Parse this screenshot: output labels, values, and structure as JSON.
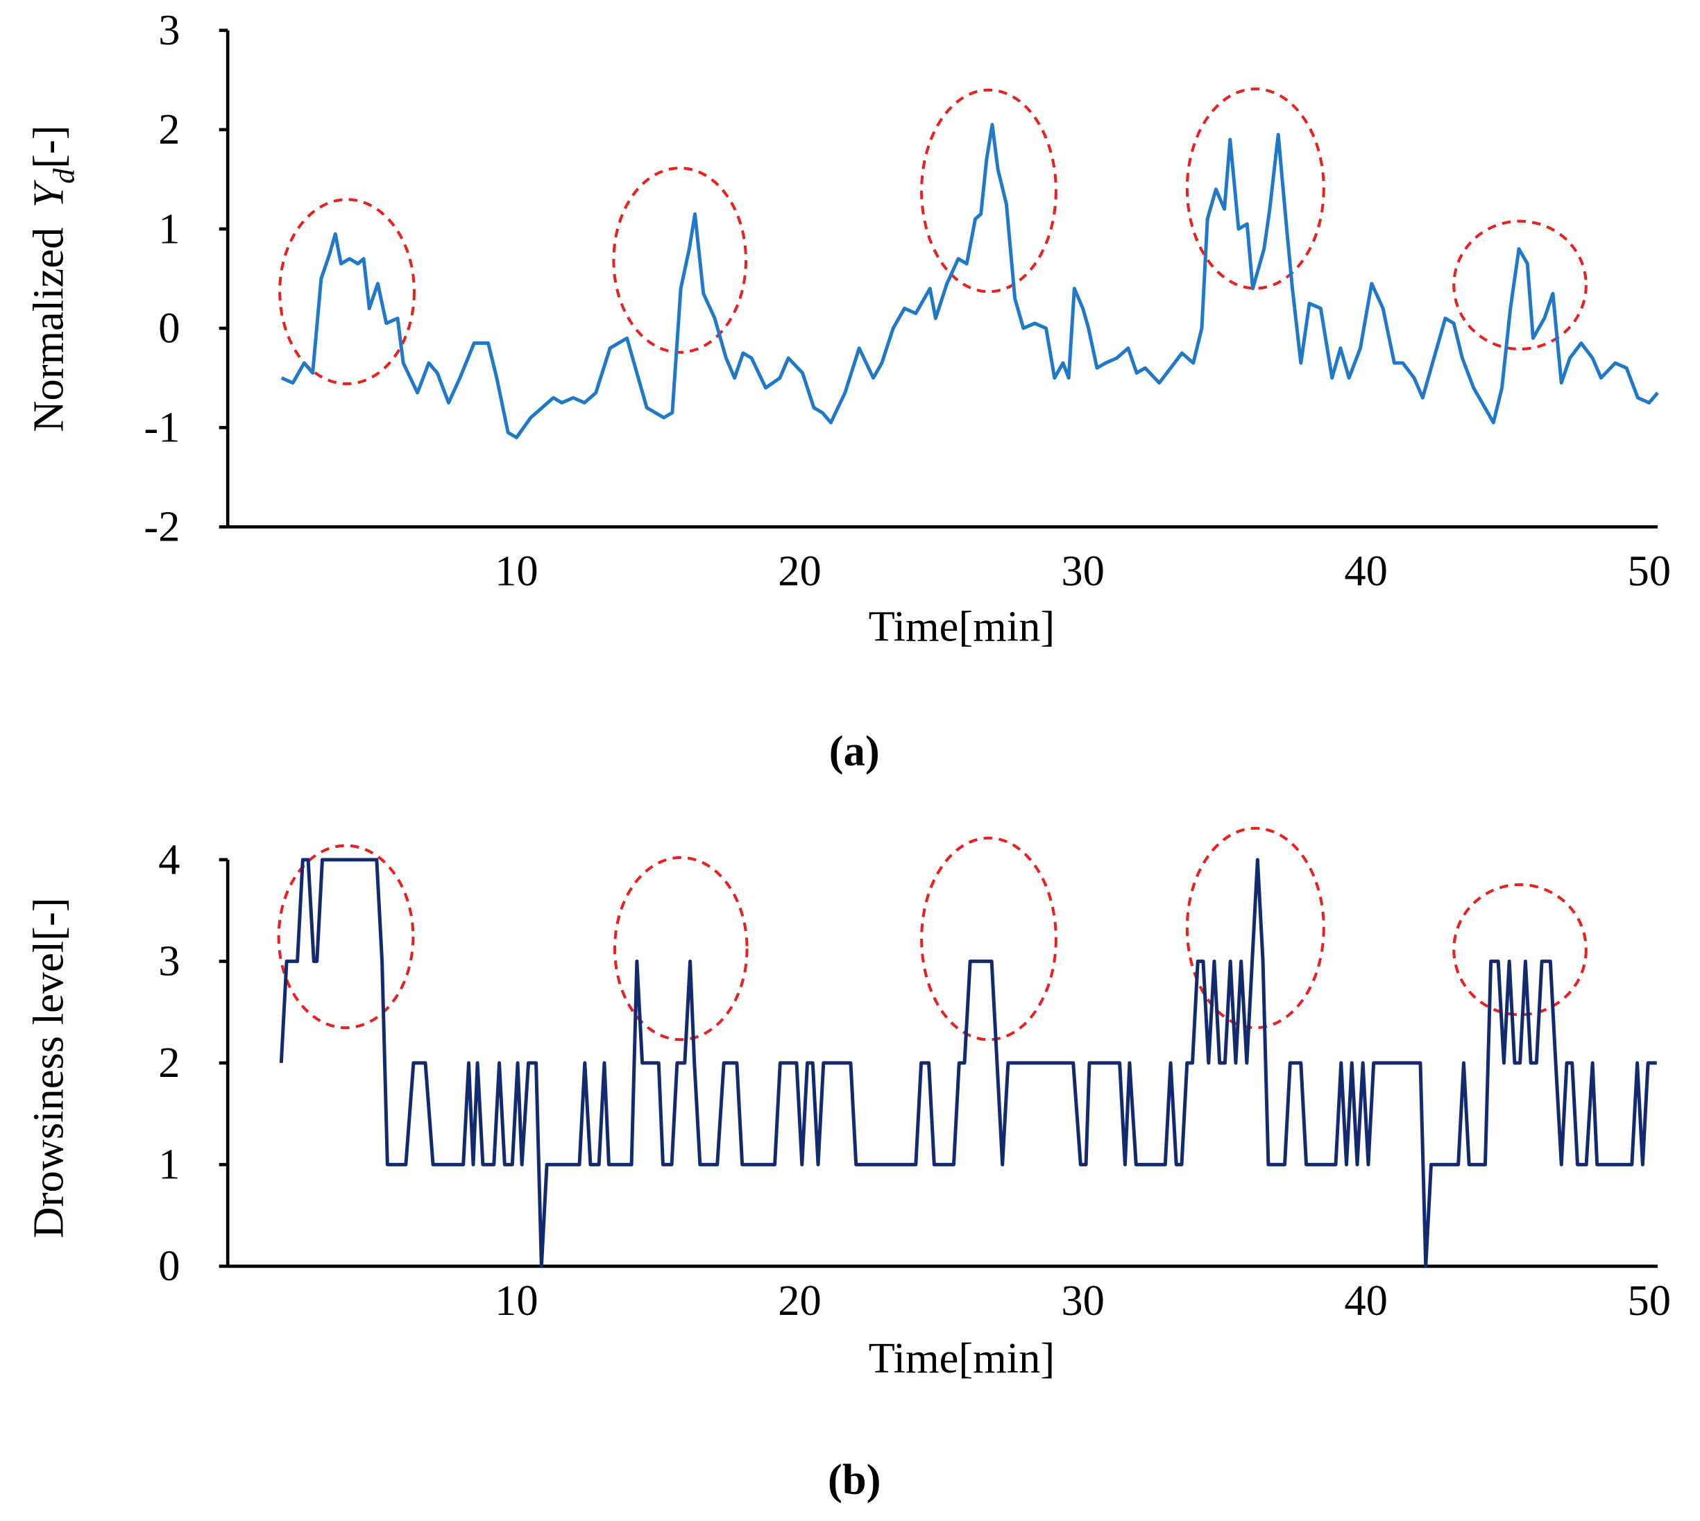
{
  "chart_data": [
    {
      "type": "line",
      "ylabel": [
        "Normalized",
        "Y",
        "d",
        "[-]"
      ],
      "xlabel": "Time[min]",
      "caption": "(a)",
      "color": "#1f78c8",
      "xlim": [
        -0.2,
        50.3
      ],
      "xticks": [
        10,
        20,
        30,
        40,
        50
      ],
      "ylim": [
        -2,
        3
      ],
      "yticks": [
        -2,
        -1,
        0,
        1,
        2,
        3
      ],
      "x": [
        1.7,
        2.1,
        2.5,
        2.8,
        3.1,
        3.4,
        3.6,
        3.8,
        4.1,
        4.4,
        4.6,
        4.8,
        5.1,
        5.4,
        5.8,
        6.0,
        6.5,
        6.9,
        7.2,
        7.6,
        8.0,
        8.5,
        9.0,
        9.3,
        9.7,
        10.0,
        10.5,
        10.9,
        11.3,
        11.6,
        12.0,
        12.4,
        12.8,
        13.3,
        13.6,
        13.9,
        14.3,
        14.6,
        15.2,
        15.5,
        15.8,
        16.1,
        16.3,
        16.6,
        17.0,
        17.4,
        17.7,
        18.0,
        18.3,
        18.8,
        19.3,
        19.6,
        20.1,
        20.5,
        20.8,
        21.1,
        21.6,
        22.1,
        22.6,
        22.9,
        23.3,
        23.7,
        24.1,
        24.6,
        24.8,
        25.2,
        25.6,
        25.9,
        26.2,
        26.4,
        26.6,
        26.8,
        27.0,
        27.3,
        27.6,
        27.9,
        28.3,
        28.7,
        29.0,
        29.3,
        29.5,
        29.7,
        30.0,
        30.2,
        30.5,
        30.8,
        31.2,
        31.6,
        31.9,
        32.2,
        32.7,
        33.1,
        33.5,
        33.9,
        34.2,
        34.4,
        34.7,
        35.0,
        35.2,
        35.5,
        35.8,
        36.0,
        36.4,
        36.6,
        36.9,
        37.2,
        37.4,
        37.7,
        38.0,
        38.4,
        38.8,
        39.1,
        39.4,
        39.8,
        40.2,
        40.6,
        41.0,
        41.3,
        41.7,
        42.0,
        42.3,
        42.8,
        43.1,
        43.4,
        43.8,
        44.1,
        44.5,
        44.8,
        45.1,
        45.4,
        45.7,
        45.9,
        46.3,
        46.6,
        46.9,
        47.2,
        47.6,
        48.0,
        48.3,
        48.8,
        49.2,
        49.6,
        50.0,
        50.3
      ],
      "values": [
        -0.5,
        -0.55,
        -0.35,
        -0.45,
        0.5,
        0.75,
        0.95,
        0.65,
        0.7,
        0.65,
        0.7,
        0.2,
        0.45,
        0.05,
        0.1,
        -0.35,
        -0.65,
        -0.35,
        -0.45,
        -0.75,
        -0.5,
        -0.15,
        -0.15,
        -0.5,
        -1.05,
        -1.1,
        -0.9,
        -0.8,
        -0.7,
        -0.75,
        -0.7,
        -0.75,
        -0.65,
        -0.2,
        -0.15,
        -0.1,
        -0.5,
        -0.8,
        -0.9,
        -0.85,
        0.4,
        0.8,
        1.15,
        0.35,
        0.1,
        -0.3,
        -0.5,
        -0.25,
        -0.3,
        -0.6,
        -0.5,
        -0.3,
        -0.45,
        -0.8,
        -0.85,
        -0.95,
        -0.65,
        -0.2,
        -0.5,
        -0.35,
        0.0,
        0.2,
        0.15,
        0.4,
        0.1,
        0.45,
        0.7,
        0.65,
        1.1,
        1.15,
        1.7,
        2.05,
        1.6,
        1.25,
        0.3,
        0.0,
        0.05,
        0.0,
        -0.5,
        -0.35,
        -0.5,
        0.4,
        0.2,
        0.0,
        -0.4,
        -0.35,
        -0.3,
        -0.2,
        -0.45,
        -0.4,
        -0.55,
        -0.4,
        -0.25,
        -0.35,
        0.0,
        1.1,
        1.4,
        1.2,
        1.9,
        1.0,
        1.05,
        0.4,
        0.8,
        1.2,
        1.95,
        1.0,
        0.4,
        -0.35,
        0.25,
        0.2,
        -0.5,
        -0.2,
        -0.5,
        -0.2,
        0.45,
        0.2,
        -0.35,
        -0.35,
        -0.5,
        -0.7,
        -0.4,
        0.1,
        0.05,
        -0.3,
        -0.6,
        -0.75,
        -0.95,
        -0.6,
        0.2,
        0.8,
        0.65,
        -0.1,
        0.1,
        0.35,
        -0.55,
        -0.3,
        -0.15,
        -0.3,
        -0.5,
        -0.35,
        -0.4,
        -0.7,
        -0.75,
        -0.65
      ]
    },
    {
      "type": "line",
      "ylabel": [
        "Drowsiness level[-]"
      ],
      "xlabel": "Time[min]",
      "caption": "(b)",
      "color": "#142a6e",
      "xlim": [
        -0.2,
        50.3
      ],
      "xticks": [
        10,
        20,
        30,
        40,
        50
      ],
      "ylim": [
        0,
        4
      ],
      "yticks": [
        0,
        1,
        2,
        3,
        4
      ],
      "x": [
        1.69,
        1.88,
        2.26,
        2.45,
        2.64,
        2.84,
        2.95,
        3.14,
        5.06,
        5.25,
        5.44,
        6.09,
        6.36,
        6.78,
        7.05,
        8.12,
        8.31,
        8.47,
        8.62,
        8.81,
        9.2,
        9.39,
        9.58,
        9.85,
        10.04,
        10.19,
        10.42,
        10.69,
        10.88,
        11.07,
        12.22,
        12.41,
        12.61,
        12.91,
        13.1,
        13.26,
        14.06,
        14.25,
        14.44,
        15.02,
        15.17,
        15.48,
        15.67,
        15.94,
        16.13,
        16.28,
        16.48,
        17.09,
        17.32,
        17.78,
        17.97,
        19.12,
        19.31,
        19.89,
        20.08,
        20.27,
        20.46,
        20.65,
        20.84,
        21.8,
        21.99,
        24.1,
        24.29,
        24.56,
        24.75,
        25.44,
        25.63,
        25.82,
        26.02,
        26.78,
        26.97,
        27.16,
        27.36,
        29.66,
        29.92,
        30.11,
        30.23,
        31.3,
        31.49,
        31.65,
        31.88,
        32.91,
        33.1,
        33.3,
        33.49,
        33.68,
        33.87,
        34.06,
        34.25,
        34.44,
        34.64,
        34.83,
        35.02,
        35.21,
        35.4,
        35.59,
        35.79,
        35.98,
        36.17,
        36.36,
        36.55,
        37.13,
        37.32,
        37.7,
        37.89,
        38.93,
        39.12,
        39.31,
        39.5,
        39.69,
        39.89,
        40.08,
        40.27,
        41.92,
        42.11,
        42.3,
        43.26,
        43.45,
        43.64,
        44.21,
        44.41,
        44.67,
        44.87,
        45.06,
        45.25,
        45.44,
        45.63,
        45.82,
        46.02,
        46.21,
        46.51,
        46.7,
        46.9,
        47.09,
        47.28,
        47.47,
        47.78,
        48.0,
        48.16,
        49.39,
        49.58,
        49.77,
        49.96,
        50.27
      ],
      "values": [
        2,
        3,
        3,
        4,
        4,
        3,
        3,
        4,
        4,
        3,
        1,
        1,
        2,
        2,
        1,
        1,
        2,
        1,
        2,
        1,
        1,
        2,
        1,
        1,
        2,
        1,
        2,
        2,
        0,
        1,
        1,
        2,
        1,
        1,
        2,
        1,
        1,
        3,
        2,
        2,
        1,
        1,
        2,
        2,
        3,
        2,
        1,
        1,
        2,
        2,
        1,
        1,
        2,
        2,
        1,
        2,
        2,
        1,
        2,
        2,
        1,
        1,
        2,
        2,
        1,
        1,
        2,
        2,
        3,
        3,
        2,
        1,
        2,
        2,
        1,
        1,
        2,
        2,
        1,
        2,
        1,
        1,
        2,
        1,
        1,
        2,
        2,
        3,
        3,
        2,
        3,
        2,
        2,
        3,
        2,
        3,
        2,
        3,
        4,
        3,
        1,
        1,
        2,
        2,
        1,
        1,
        2,
        1,
        2,
        1,
        2,
        1,
        2,
        2,
        0,
        1,
        1,
        2,
        1,
        1,
        3,
        3,
        2,
        3,
        2,
        2,
        3,
        2,
        2,
        3,
        3,
        2,
        1,
        2,
        2,
        1,
        1,
        2,
        1,
        1,
        2,
        1,
        2,
        2
      ]
    }
  ]
}
